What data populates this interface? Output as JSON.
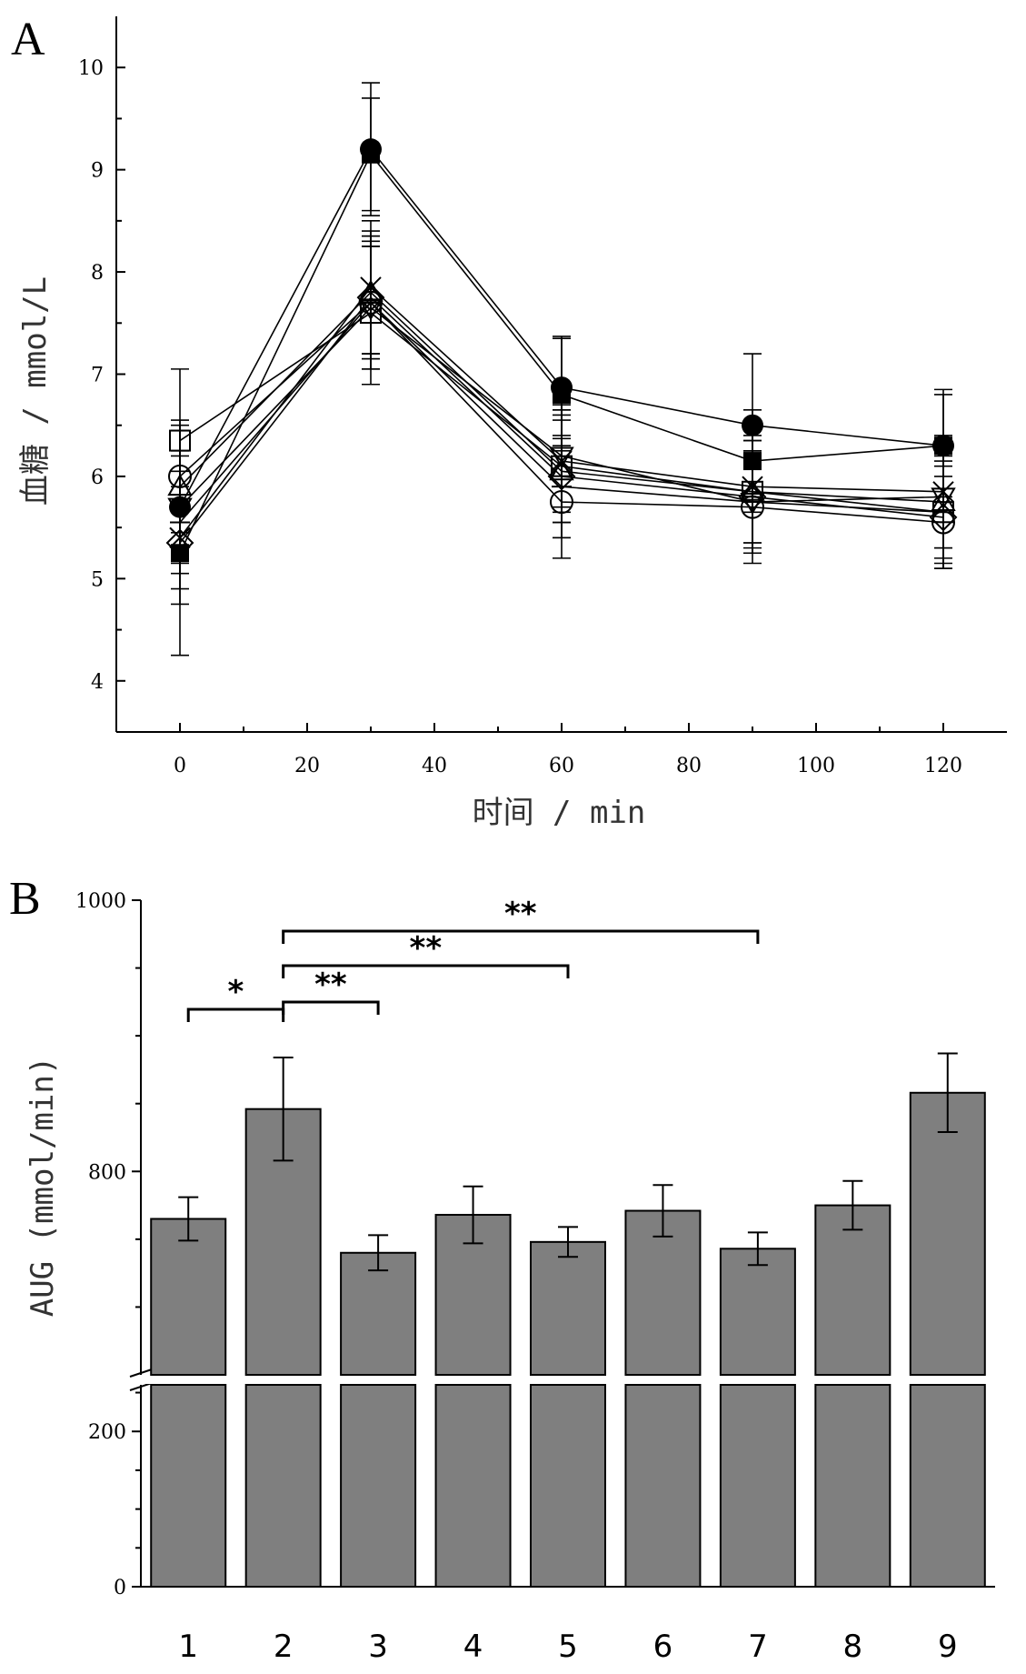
{
  "chart_data": [
    {
      "panel_label": "A",
      "type": "line",
      "xlabel": "时间 / min",
      "ylabel": "血糖 / mmol/L",
      "xlim": [
        -10,
        130
      ],
      "ylim": [
        3.5,
        10.5
      ],
      "x_ticks": [
        "0",
        "20",
        "40",
        "60",
        "80",
        "100",
        "120"
      ],
      "y_ticks": [
        "4",
        "5",
        "6",
        "7",
        "8",
        "9",
        "10"
      ],
      "x": [
        0,
        30,
        60,
        90,
        120
      ],
      "series": [
        {
          "marker": "filled-circle",
          "values": [
            5.7,
            9.2,
            6.87,
            6.5,
            6.3
          ],
          "err": [
            0.5,
            0.65,
            0.5,
            0.7,
            0.55
          ]
        },
        {
          "marker": "filled-square",
          "values": [
            5.25,
            9.15,
            6.8,
            6.15,
            6.3
          ],
          "err": [
            0.5,
            0.55,
            0.55,
            0.5,
            0.5
          ]
        },
        {
          "marker": "open-circle",
          "values": [
            6.0,
            7.7,
            5.75,
            5.7,
            5.55
          ],
          "err": [
            0.55,
            0.65,
            0.55,
            0.55,
            0.45
          ]
        },
        {
          "marker": "open-square",
          "values": [
            6.35,
            7.6,
            6.1,
            5.85,
            5.65
          ],
          "err": [
            0.7,
            0.7,
            0.55,
            0.55,
            0.55
          ]
        },
        {
          "marker": "open-diamond",
          "values": [
            5.35,
            7.75,
            6.0,
            5.8,
            5.6
          ],
          "err": [
            1.1,
            0.6,
            0.6,
            0.55,
            0.5
          ]
        },
        {
          "marker": "x-cross",
          "values": [
            5.4,
            7.85,
            6.15,
            5.9,
            5.85
          ],
          "err": [
            0.5,
            0.65,
            0.5,
            0.55,
            0.55
          ]
        },
        {
          "marker": "down-triangle",
          "values": [
            5.7,
            7.65,
            6.2,
            5.75,
            5.8
          ],
          "err": [
            0.55,
            0.6,
            0.5,
            0.5,
            0.5
          ]
        },
        {
          "marker": "up-triangle",
          "values": [
            5.9,
            7.8,
            6.05,
            5.85,
            5.75
          ],
          "err": [
            0.6,
            0.6,
            0.5,
            0.5,
            0.55
          ]
        },
        {
          "marker": "plus",
          "values": [
            5.55,
            7.7,
            5.9,
            5.75,
            5.65
          ],
          "err": [
            0.5,
            0.55,
            0.5,
            0.5,
            0.5
          ]
        }
      ]
    },
    {
      "panel_label": "B",
      "type": "bar",
      "ylabel": "AUG (mmol/min)",
      "categories": [
        "1",
        "2",
        "3",
        "4",
        "5",
        "6",
        "7",
        "8",
        "9"
      ],
      "values": [
        765,
        846,
        740,
        768,
        748,
        771,
        743,
        775,
        858
      ],
      "errors": [
        16,
        38,
        13,
        21,
        11,
        19,
        12,
        18,
        29
      ],
      "axis_break": [
        260,
        650
      ],
      "lower_ylim": [
        0,
        260
      ],
      "upper_ylim": [
        650,
        1000
      ],
      "y_ticks_lower": [
        "0",
        "200"
      ],
      "y_ticks_upper": [
        "800",
        "1000"
      ],
      "bar_color": "#7f7f7f",
      "significance": [
        {
          "from": "1",
          "to": "2",
          "label": "*"
        },
        {
          "from": "2",
          "to": "3",
          "label": "**"
        },
        {
          "from": "2",
          "to": "5",
          "label": "**"
        },
        {
          "from": "2",
          "to": "7",
          "label": "**"
        }
      ]
    }
  ]
}
